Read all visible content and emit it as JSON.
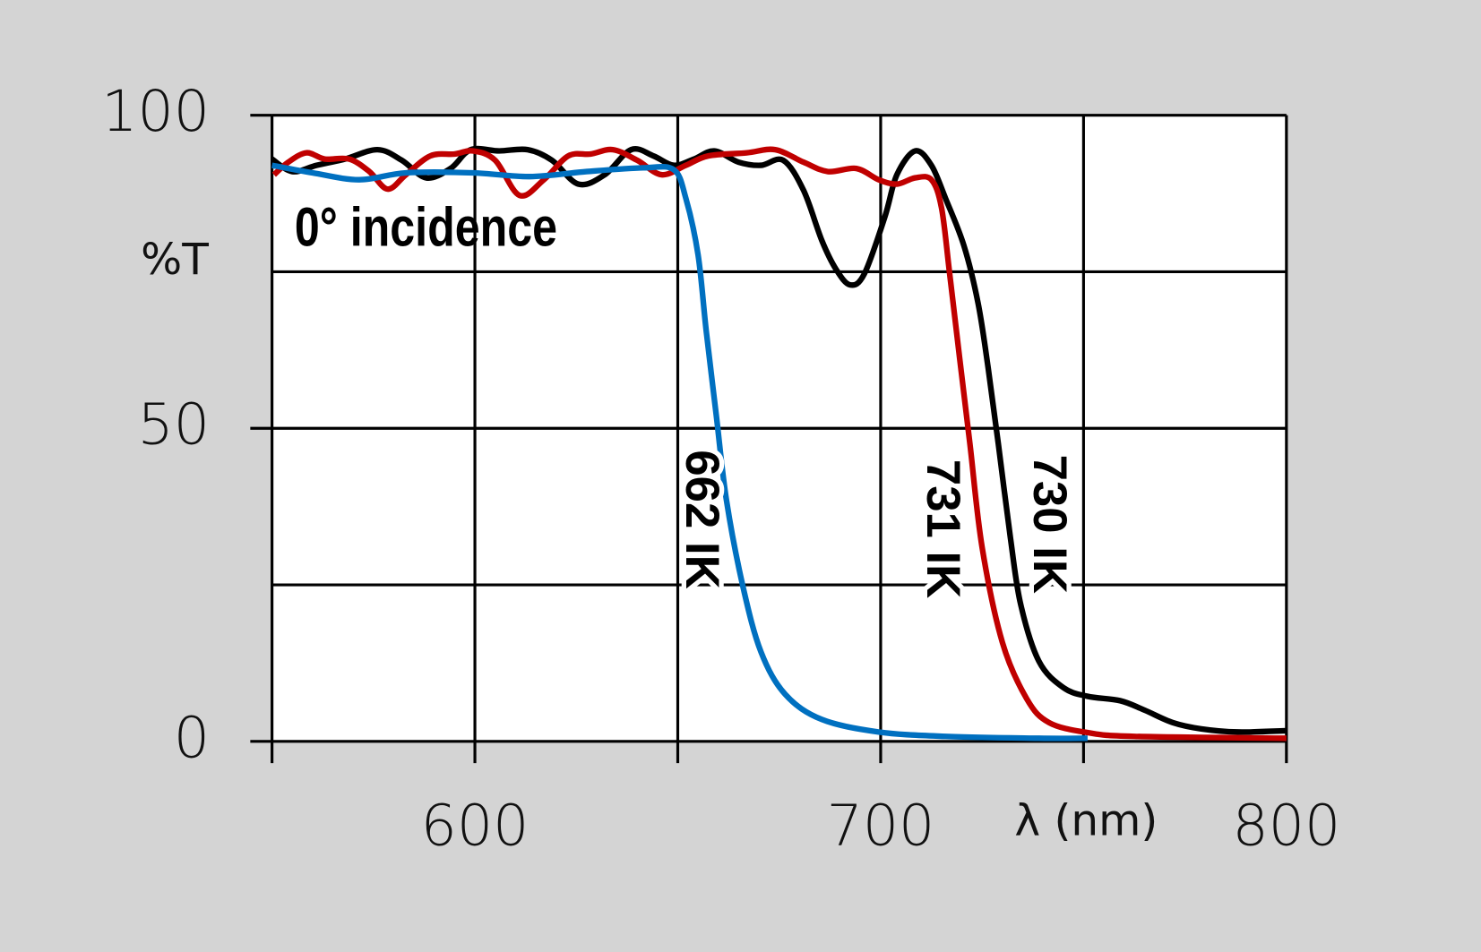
{
  "chart_data": {
    "type": "line",
    "xlabel": "λ (nm)",
    "ylabel": "%T",
    "annotations": [
      "0° incidence"
    ],
    "xlim": [
      550,
      800
    ],
    "ylim": [
      0,
      100
    ],
    "xticks": [
      600,
      700,
      800
    ],
    "yticks": [
      0,
      50,
      100
    ],
    "xgrid": [
      550,
      600,
      650,
      700,
      750,
      800
    ],
    "ygrid": [
      0,
      25,
      50,
      75,
      100
    ],
    "grid": true,
    "series": [
      {
        "name": "730 IK",
        "color": "#000000",
        "x": [
          550,
          555,
          561,
          568,
          576,
          582,
          588,
          594,
          599,
          606,
          613,
          619,
          625.5,
          632,
          638.5,
          644,
          649,
          654,
          659,
          665,
          670.5,
          676,
          681,
          685.5,
          689,
          692.5,
          696,
          701,
          704,
          708.5,
          712.5,
          716,
          720.5,
          724,
          726.5,
          729,
          732,
          734.5,
          739,
          745,
          751,
          759,
          765,
          772,
          779,
          788,
          800
        ],
        "values": [
          93,
          91,
          92,
          93,
          94.5,
          92.8,
          90,
          91.5,
          94.5,
          94.3,
          94.5,
          92.8,
          89,
          90.5,
          94.5,
          93.5,
          92,
          93,
          94.3,
          92.5,
          92,
          92.8,
          88,
          80,
          75.4,
          72.9,
          74.7,
          83.7,
          90.5,
          94.3,
          92,
          86.7,
          79.2,
          70,
          59.6,
          47.5,
          32.4,
          21.9,
          12.8,
          8.6,
          7.2,
          6.5,
          5,
          3,
          2,
          1.5,
          1.7
        ]
      },
      {
        "name": "731 IK",
        "color": "#c00000",
        "x": [
          550.5,
          554,
          558.5,
          563,
          569,
          574,
          578.5,
          583,
          589,
          595,
          599.5,
          605,
          611,
          617,
          623,
          628.5,
          634,
          640,
          646,
          652,
          657.5,
          667,
          674,
          681,
          687,
          694,
          699.5,
          704,
          708.5,
          712.5,
          715,
          717,
          719.5,
          722,
          725,
          730,
          736,
          741.5,
          751,
          762.5,
          800
        ],
        "values": [
          90.5,
          92.5,
          94,
          93,
          93,
          91,
          88.2,
          90.5,
          93.5,
          93.8,
          94.3,
          92.8,
          87.2,
          89.7,
          93.5,
          93.8,
          94.5,
          92.8,
          90.5,
          92,
          93.5,
          94,
          94.5,
          92.5,
          91,
          91.5,
          89.7,
          89,
          90,
          89.7,
          85.2,
          74.7,
          61,
          47.5,
          31,
          15.8,
          6.8,
          3,
          1.4,
          0.8,
          0.5
        ]
      },
      {
        "name": "662 IK",
        "color": "#0070c0",
        "x": [
          550,
          560,
          571.5,
          583,
          599.5,
          613.5,
          627.5,
          641.5,
          649,
          652,
          655,
          657,
          659.5,
          662,
          666,
          670.5,
          676.5,
          685.5,
          699.5,
          716,
          739,
          751
        ],
        "values": [
          92,
          90.8,
          89.7,
          90.8,
          90.8,
          90.2,
          91,
          91.6,
          91.3,
          86.7,
          77.7,
          65.6,
          52,
          38.5,
          24.9,
          14.3,
          7.5,
          3.5,
          1.5,
          0.8,
          0.5,
          0.5
        ]
      }
    ]
  }
}
